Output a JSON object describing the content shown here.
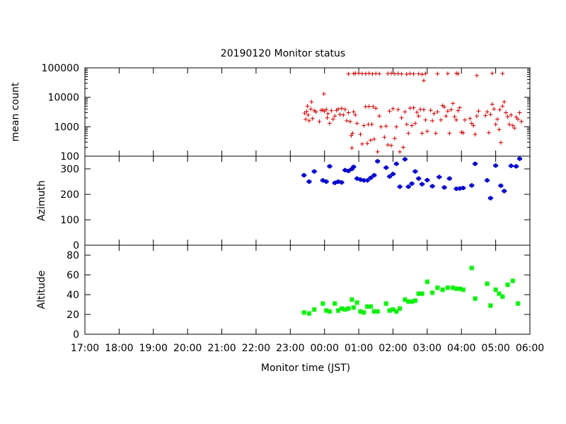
{
  "chart_data": {
    "type": "scatter",
    "title": "20190120 Monitor status",
    "xlabel": "Monitor time (JST)",
    "x_ticks": [
      "17:00",
      "18:00",
      "19:00",
      "20:00",
      "21:00",
      "22:00",
      "23:00",
      "00:00",
      "01:00",
      "02:00",
      "03:00",
      "04:00",
      "05:00",
      "06:00"
    ],
    "xlim_hours": [
      17,
      30
    ],
    "panels": [
      {
        "name": "mean-count",
        "ylabel": "mean count",
        "scale": "log",
        "ylim": [
          100,
          100000
        ],
        "y_ticks": [
          "100",
          "1000",
          "10000",
          "100000"
        ],
        "y_tick_values": [
          100,
          1000,
          10000,
          100000
        ],
        "color": "#cc0000",
        "marker": "plus",
        "points": [
          [
            23.42,
            2900
          ],
          [
            23.45,
            1800
          ],
          [
            23.48,
            3300
          ],
          [
            23.5,
            5000
          ],
          [
            23.52,
            2500
          ],
          [
            23.55,
            1600
          ],
          [
            23.6,
            4000
          ],
          [
            23.62,
            7000
          ],
          [
            23.65,
            1900
          ],
          [
            23.7,
            3500
          ],
          [
            23.75,
            3200
          ],
          [
            23.85,
            1500
          ],
          [
            23.9,
            3600
          ],
          [
            23.95,
            3700
          ],
          [
            23.98,
            13000
          ],
          [
            24.0,
            3400
          ],
          [
            24.05,
            3900
          ],
          [
            24.08,
            2000
          ],
          [
            24.1,
            2800
          ],
          [
            24.15,
            1300
          ],
          [
            24.2,
            3500
          ],
          [
            24.25,
            1800
          ],
          [
            24.3,
            2300
          ],
          [
            24.35,
            3600
          ],
          [
            24.4,
            4000
          ],
          [
            24.45,
            2600
          ],
          [
            24.5,
            4200
          ],
          [
            24.55,
            2500
          ],
          [
            24.6,
            3900
          ],
          [
            24.65,
            1600
          ],
          [
            24.7,
            3000
          ],
          [
            24.75,
            1500
          ],
          [
            24.78,
            500
          ],
          [
            24.82,
            600
          ],
          [
            24.85,
            3200
          ],
          [
            24.9,
            2500
          ],
          [
            24.95,
            1300
          ],
          [
            24.8,
            190
          ],
          [
            25.05,
            550
          ],
          [
            25.1,
            260
          ],
          [
            25.15,
            1100
          ],
          [
            25.2,
            4800
          ],
          [
            25.25,
            270
          ],
          [
            25.28,
            1200
          ],
          [
            25.3,
            4900
          ],
          [
            25.35,
            350
          ],
          [
            25.38,
            1200
          ],
          [
            25.42,
            4800
          ],
          [
            25.45,
            380
          ],
          [
            25.5,
            4200
          ],
          [
            25.55,
            140
          ],
          [
            25.6,
            2300
          ],
          [
            25.65,
            1000
          ],
          [
            25.75,
            440
          ],
          [
            25.8,
            1050
          ],
          [
            25.85,
            240
          ],
          [
            25.9,
            3400
          ],
          [
            25.95,
            230
          ],
          [
            26.0,
            4100
          ],
          [
            26.05,
            400
          ],
          [
            26.1,
            1000
          ],
          [
            26.15,
            3800
          ],
          [
            26.2,
            140
          ],
          [
            26.25,
            2000
          ],
          [
            26.3,
            200
          ],
          [
            26.35,
            3200
          ],
          [
            26.4,
            1200
          ],
          [
            26.45,
            600
          ],
          [
            26.5,
            4300
          ],
          [
            26.55,
            1100
          ],
          [
            26.6,
            4400
          ],
          [
            26.65,
            1300
          ],
          [
            26.7,
            3100
          ],
          [
            26.75,
            2300
          ],
          [
            26.8,
            3900
          ],
          [
            26.85,
            600
          ],
          [
            26.9,
            3800
          ],
          [
            26.95,
            1700
          ],
          [
            27.0,
            700
          ],
          [
            27.1,
            3600
          ],
          [
            27.15,
            1600
          ],
          [
            27.2,
            2800
          ],
          [
            27.25,
            600
          ],
          [
            27.3,
            3200
          ],
          [
            27.4,
            1700
          ],
          [
            27.45,
            5200
          ],
          [
            27.5,
            4700
          ],
          [
            27.55,
            2300
          ],
          [
            27.6,
            3400
          ],
          [
            27.65,
            600
          ],
          [
            27.7,
            3800
          ],
          [
            27.75,
            6200
          ],
          [
            27.8,
            2200
          ],
          [
            27.85,
            1700
          ],
          [
            27.9,
            3500
          ],
          [
            27.95,
            4400
          ],
          [
            28.0,
            650
          ],
          [
            28.05,
            620
          ],
          [
            28.1,
            1700
          ],
          [
            28.25,
            1900
          ],
          [
            28.3,
            1300
          ],
          [
            28.35,
            1100
          ],
          [
            28.4,
            550
          ],
          [
            28.45,
            2300
          ],
          [
            28.5,
            3400
          ],
          [
            28.7,
            2400
          ],
          [
            28.75,
            3200
          ],
          [
            28.8,
            630
          ],
          [
            28.85,
            2600
          ],
          [
            28.9,
            5800
          ],
          [
            28.95,
            4000
          ],
          [
            29.0,
            1200
          ],
          [
            29.05,
            1800
          ],
          [
            29.1,
            800
          ],
          [
            29.12,
            3800
          ],
          [
            29.15,
            290
          ],
          [
            29.2,
            5000
          ],
          [
            29.25,
            7000
          ],
          [
            29.3,
            3000
          ],
          [
            29.35,
            2200
          ],
          [
            29.4,
            1200
          ],
          [
            29.45,
            2500
          ],
          [
            29.5,
            1100
          ],
          [
            29.55,
            900
          ],
          [
            29.6,
            2100
          ],
          [
            29.65,
            1800
          ],
          [
            29.7,
            3000
          ],
          [
            29.75,
            1500
          ],
          [
            24.7,
            62000
          ],
          [
            24.85,
            64000
          ],
          [
            24.9,
            65000
          ],
          [
            25.0,
            66000
          ],
          [
            25.1,
            64000
          ],
          [
            25.2,
            63000
          ],
          [
            25.3,
            65000
          ],
          [
            25.4,
            62000
          ],
          [
            25.5,
            64000
          ],
          [
            25.6,
            63000
          ],
          [
            25.85,
            64000
          ],
          [
            25.95,
            65000
          ],
          [
            26.05,
            63000
          ],
          [
            26.15,
            64000
          ],
          [
            26.25,
            62000
          ],
          [
            26.4,
            61000
          ],
          [
            26.5,
            64000
          ],
          [
            26.6,
            62000
          ],
          [
            26.75,
            63000
          ],
          [
            26.85,
            60000
          ],
          [
            26.9,
            37000
          ],
          [
            26.95,
            64000
          ],
          [
            27.3,
            63000
          ],
          [
            27.6,
            64000
          ],
          [
            27.85,
            65000
          ],
          [
            27.9,
            63000
          ],
          [
            28.45,
            55000
          ],
          [
            28.9,
            65000
          ],
          [
            29.2,
            64000
          ]
        ]
      },
      {
        "name": "azimuth",
        "ylabel": "Azimuth",
        "scale": "linear",
        "ylim": [
          0,
          350
        ],
        "y_ticks": [
          "0",
          "100",
          "200",
          "300"
        ],
        "y_tick_values": [
          0,
          100,
          200,
          300
        ],
        "color": "#0000cc",
        "marker": "cross-bold",
        "points": [
          [
            23.4,
            275
          ],
          [
            23.55,
            250
          ],
          [
            23.7,
            290
          ],
          [
            23.95,
            255
          ],
          [
            24.05,
            250
          ],
          [
            24.15,
            310
          ],
          [
            24.3,
            245
          ],
          [
            24.4,
            250
          ],
          [
            24.5,
            247
          ],
          [
            24.6,
            295
          ],
          [
            24.7,
            292
          ],
          [
            24.8,
            300
          ],
          [
            24.85,
            308
          ],
          [
            24.95,
            262
          ],
          [
            25.05,
            258
          ],
          [
            25.15,
            255
          ],
          [
            25.25,
            255
          ],
          [
            25.35,
            265
          ],
          [
            25.45,
            275
          ],
          [
            25.55,
            330
          ],
          [
            25.8,
            305
          ],
          [
            25.9,
            270
          ],
          [
            26.0,
            280
          ],
          [
            26.1,
            320
          ],
          [
            26.2,
            230
          ],
          [
            26.35,
            338
          ],
          [
            26.45,
            230
          ],
          [
            26.55,
            242
          ],
          [
            26.65,
            290
          ],
          [
            26.75,
            262
          ],
          [
            26.85,
            240
          ],
          [
            27.0,
            256
          ],
          [
            27.15,
            232
          ],
          [
            27.35,
            268
          ],
          [
            27.5,
            227
          ],
          [
            27.65,
            262
          ],
          [
            27.85,
            222
          ],
          [
            27.95,
            223
          ],
          [
            28.05,
            225
          ],
          [
            28.3,
            235
          ],
          [
            28.4,
            320
          ],
          [
            28.75,
            255
          ],
          [
            28.85,
            185
          ],
          [
            29.0,
            313
          ],
          [
            29.15,
            234
          ],
          [
            29.25,
            213
          ],
          [
            29.45,
            312
          ],
          [
            29.6,
            310
          ],
          [
            29.7,
            340
          ]
        ]
      },
      {
        "name": "altitude",
        "ylabel": "Altitude",
        "scale": "linear",
        "ylim": [
          0,
          90
        ],
        "y_ticks": [
          "0",
          "20",
          "40",
          "60",
          "80"
        ],
        "y_tick_values": [
          0,
          20,
          40,
          60,
          80
        ],
        "color": "#00ee00",
        "marker": "star",
        "points": [
          [
            23.4,
            22
          ],
          [
            23.55,
            21
          ],
          [
            23.7,
            25
          ],
          [
            23.95,
            31
          ],
          [
            24.05,
            24
          ],
          [
            24.15,
            23
          ],
          [
            24.3,
            31
          ],
          [
            24.4,
            24
          ],
          [
            24.5,
            26
          ],
          [
            24.6,
            25
          ],
          [
            24.7,
            26
          ],
          [
            24.8,
            35
          ],
          [
            24.85,
            27
          ],
          [
            24.95,
            32
          ],
          [
            25.05,
            23
          ],
          [
            25.15,
            22
          ],
          [
            25.25,
            28
          ],
          [
            25.35,
            28
          ],
          [
            25.45,
            23
          ],
          [
            25.55,
            23
          ],
          [
            25.8,
            31
          ],
          [
            25.9,
            24
          ],
          [
            26.0,
            25
          ],
          [
            26.1,
            23
          ],
          [
            26.2,
            26
          ],
          [
            26.35,
            35
          ],
          [
            26.45,
            33
          ],
          [
            26.55,
            33
          ],
          [
            26.65,
            34
          ],
          [
            26.75,
            41
          ],
          [
            26.85,
            41
          ],
          [
            27.0,
            53
          ],
          [
            27.15,
            42
          ],
          [
            27.3,
            47
          ],
          [
            27.45,
            45
          ],
          [
            27.6,
            47
          ],
          [
            27.75,
            47
          ],
          [
            27.85,
            46
          ],
          [
            27.95,
            46
          ],
          [
            28.05,
            45
          ],
          [
            28.3,
            67
          ],
          [
            28.4,
            36
          ],
          [
            28.75,
            51
          ],
          [
            28.85,
            29
          ],
          [
            29.0,
            45
          ],
          [
            29.1,
            41
          ],
          [
            29.2,
            38
          ],
          [
            29.35,
            50
          ],
          [
            29.5,
            54
          ],
          [
            29.65,
            31
          ]
        ]
      }
    ]
  }
}
